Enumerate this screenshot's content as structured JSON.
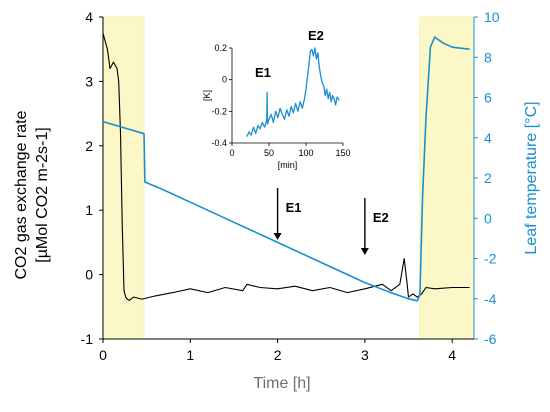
{
  "chart_data": [
    {
      "type": "line",
      "xlabel": "Time [h]",
      "ylabel_left_line1": "CO2 gas exchange rate",
      "ylabel_left_line2": "[µMol CO2 m-2s-1]",
      "ylabel_right": "Leaf temperature [°C]",
      "xlim": [
        0,
        4.25
      ],
      "ylim_left": [
        -1,
        4
      ],
      "ylim_right": [
        -6,
        10
      ],
      "x_ticks": [
        "0",
        "1",
        "2",
        "3",
        "4"
      ],
      "y_left_ticks": [
        "4",
        "3",
        "2",
        "1",
        "0",
        "-1"
      ],
      "y_right_ticks": [
        "10",
        "8",
        "6",
        "4",
        "2",
        "0",
        "-2",
        "-4",
        "-6"
      ],
      "grid": false,
      "shaded_regions": [
        {
          "x0": 0.0,
          "x1": 0.47
        },
        {
          "x0": 3.63,
          "x1": 4.25
        }
      ],
      "series": [
        {
          "axis": "left",
          "color": "#000000",
          "x": [
            0.0,
            0.02,
            0.05,
            0.08,
            0.12,
            0.16,
            0.18,
            0.2,
            0.22,
            0.24,
            0.26,
            0.28,
            0.3,
            0.35,
            0.45,
            0.6,
            0.8,
            1.0,
            1.2,
            1.4,
            1.6,
            1.65,
            1.8,
            2.0,
            2.2,
            2.4,
            2.6,
            2.8,
            3.0,
            3.2,
            3.3,
            3.4,
            3.45,
            3.48,
            3.5,
            3.55,
            3.6,
            3.65,
            3.7,
            3.8,
            4.0,
            4.2
          ],
          "y": [
            3.75,
            3.65,
            3.5,
            3.2,
            3.3,
            3.2,
            3.0,
            2.2,
            0.8,
            -0.25,
            -0.35,
            -0.38,
            -0.4,
            -0.35,
            -0.38,
            -0.33,
            -0.28,
            -0.22,
            -0.28,
            -0.2,
            -0.25,
            -0.15,
            -0.2,
            -0.22,
            -0.18,
            -0.25,
            -0.2,
            -0.28,
            -0.22,
            -0.15,
            -0.25,
            -0.15,
            0.25,
            -0.1,
            -0.35,
            -0.3,
            -0.35,
            -0.3,
            -0.2,
            -0.22,
            -0.2,
            -0.2
          ]
        },
        {
          "axis": "right",
          "color": "#1a8fd0",
          "x": [
            0.0,
            0.47,
            0.48,
            0.7,
            1.0,
            1.5,
            2.0,
            2.5,
            3.0,
            3.3,
            3.5,
            3.6,
            3.63,
            3.66,
            3.7,
            3.75,
            3.8,
            3.9,
            4.0,
            4.2
          ],
          "y": [
            4.8,
            4.2,
            1.8,
            1.4,
            0.8,
            -0.2,
            -1.2,
            -2.2,
            -3.2,
            -3.7,
            -4.0,
            -4.1,
            -3.8,
            1.0,
            5.0,
            8.5,
            9.0,
            8.7,
            8.5,
            8.4
          ]
        }
      ],
      "annotations": [
        {
          "label": "E1",
          "x": 2.0
        },
        {
          "label": "E2",
          "x": 3.0
        }
      ]
    },
    {
      "type": "line",
      "ylabel": "[K]",
      "xlabel": "[min]",
      "xlim": [
        0,
        150
      ],
      "ylim": [
        -0.4,
        0.2
      ],
      "x_ticks": [
        "0",
        "50",
        "100",
        "150"
      ],
      "y_ticks": [
        "0.2",
        "0",
        "-0.2",
        "-0.4"
      ],
      "series": [
        {
          "color": "#1a8fd0",
          "x": [
            20,
            23,
            26,
            29,
            32,
            35,
            38,
            41,
            44,
            47,
            47.5,
            48,
            50,
            53,
            56,
            59,
            62,
            65,
            68,
            71,
            74,
            77,
            80,
            83,
            86,
            89,
            92,
            95,
            98,
            100,
            102,
            104,
            106,
            108,
            110,
            112,
            114,
            116,
            118,
            120,
            122,
            124,
            126,
            128,
            130,
            132,
            134,
            136,
            138,
            140,
            142,
            145
          ],
          "y": [
            -0.36,
            -0.33,
            -0.35,
            -0.3,
            -0.34,
            -0.29,
            -0.31,
            -0.27,
            -0.3,
            -0.25,
            -0.08,
            -0.28,
            -0.25,
            -0.22,
            -0.27,
            -0.2,
            -0.24,
            -0.18,
            -0.22,
            -0.25,
            -0.19,
            -0.23,
            -0.17,
            -0.21,
            -0.15,
            -0.2,
            -0.14,
            -0.18,
            -0.12,
            -0.06,
            0.02,
            0.1,
            0.18,
            0.19,
            0.15,
            0.2,
            0.13,
            0.17,
            0.08,
            0.02,
            -0.02,
            -0.04,
            -0.1,
            -0.06,
            -0.12,
            -0.08,
            -0.14,
            -0.1,
            -0.12,
            -0.16,
            -0.11,
            -0.13
          ]
        }
      ],
      "annotations": [
        {
          "label": "E1",
          "x": 45,
          "y": 0.05
        },
        {
          "label": "E2",
          "x": 113,
          "y": 0.34
        }
      ]
    }
  ]
}
